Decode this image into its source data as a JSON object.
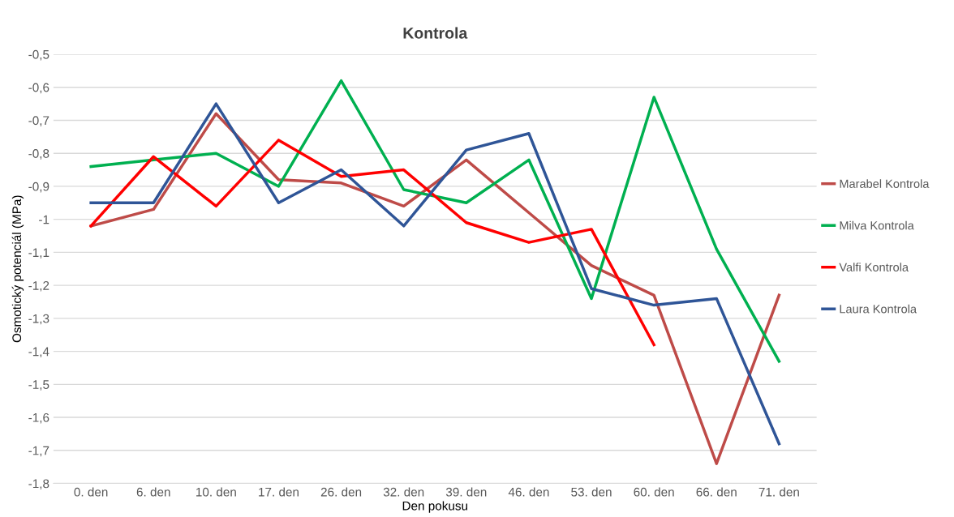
{
  "chart_data": {
    "type": "line",
    "title": "Kontrola",
    "xlabel": "Den pokusu",
    "ylabel": "Osmotický potenciál (MPa)",
    "categories": [
      "0. den",
      "6. den",
      "10. den",
      "17. den",
      "26. den",
      "32. den",
      "39. den",
      "46. den",
      "53. den",
      "60. den",
      "66. den",
      "71. den"
    ],
    "series": [
      {
        "name": "Marabel Kontrola",
        "color": "#be4b48",
        "values": [
          -1.02,
          -0.97,
          -0.68,
          -0.88,
          -0.89,
          -0.96,
          -0.82,
          -0.98,
          -1.14,
          -1.23,
          -1.74,
          -1.23
        ]
      },
      {
        "name": "Milva Kontrola",
        "color": "#00b050",
        "values": [
          -0.84,
          -0.82,
          -0.8,
          -0.9,
          -0.58,
          -0.91,
          -0.95,
          -0.82,
          -1.24,
          -0.63,
          -1.09,
          -1.43
        ]
      },
      {
        "name": "Valfi Kontrola",
        "color": "#ff0000",
        "values": [
          -1.02,
          -0.81,
          -0.96,
          -0.76,
          -0.87,
          -0.85,
          -1.01,
          -1.07,
          -1.03,
          -1.38,
          null,
          null
        ]
      },
      {
        "name": "Laura Kontrola",
        "color": "#2f5597",
        "values": [
          -0.95,
          -0.95,
          -0.65,
          -0.95,
          -0.85,
          -1.02,
          -0.79,
          -0.74,
          -1.21,
          -1.26,
          -1.24,
          -1.68
        ]
      }
    ],
    "ylim": [
      -1.8,
      -0.5
    ],
    "yticks": [
      {
        "value": -1.8,
        "label": "-1,8"
      },
      {
        "value": -1.7,
        "label": "-1,7"
      },
      {
        "value": -1.6,
        "label": "-1,6"
      },
      {
        "value": -1.5,
        "label": "-1,5"
      },
      {
        "value": -1.4,
        "label": "-1,4"
      },
      {
        "value": -1.3,
        "label": "-1,3"
      },
      {
        "value": -1.2,
        "label": "-1,2"
      },
      {
        "value": -1.1,
        "label": "-1,1"
      },
      {
        "value": -1.0,
        "label": "-1"
      },
      {
        "value": -0.9,
        "label": "-0,9"
      },
      {
        "value": -0.8,
        "label": "-0,8"
      },
      {
        "value": -0.7,
        "label": "-0,7"
      },
      {
        "value": -0.6,
        "label": "-0,6"
      },
      {
        "value": -0.5,
        "label": "-0,5"
      }
    ],
    "grid": "y",
    "legend": "right",
    "marker": "none",
    "line_style": "solid"
  }
}
